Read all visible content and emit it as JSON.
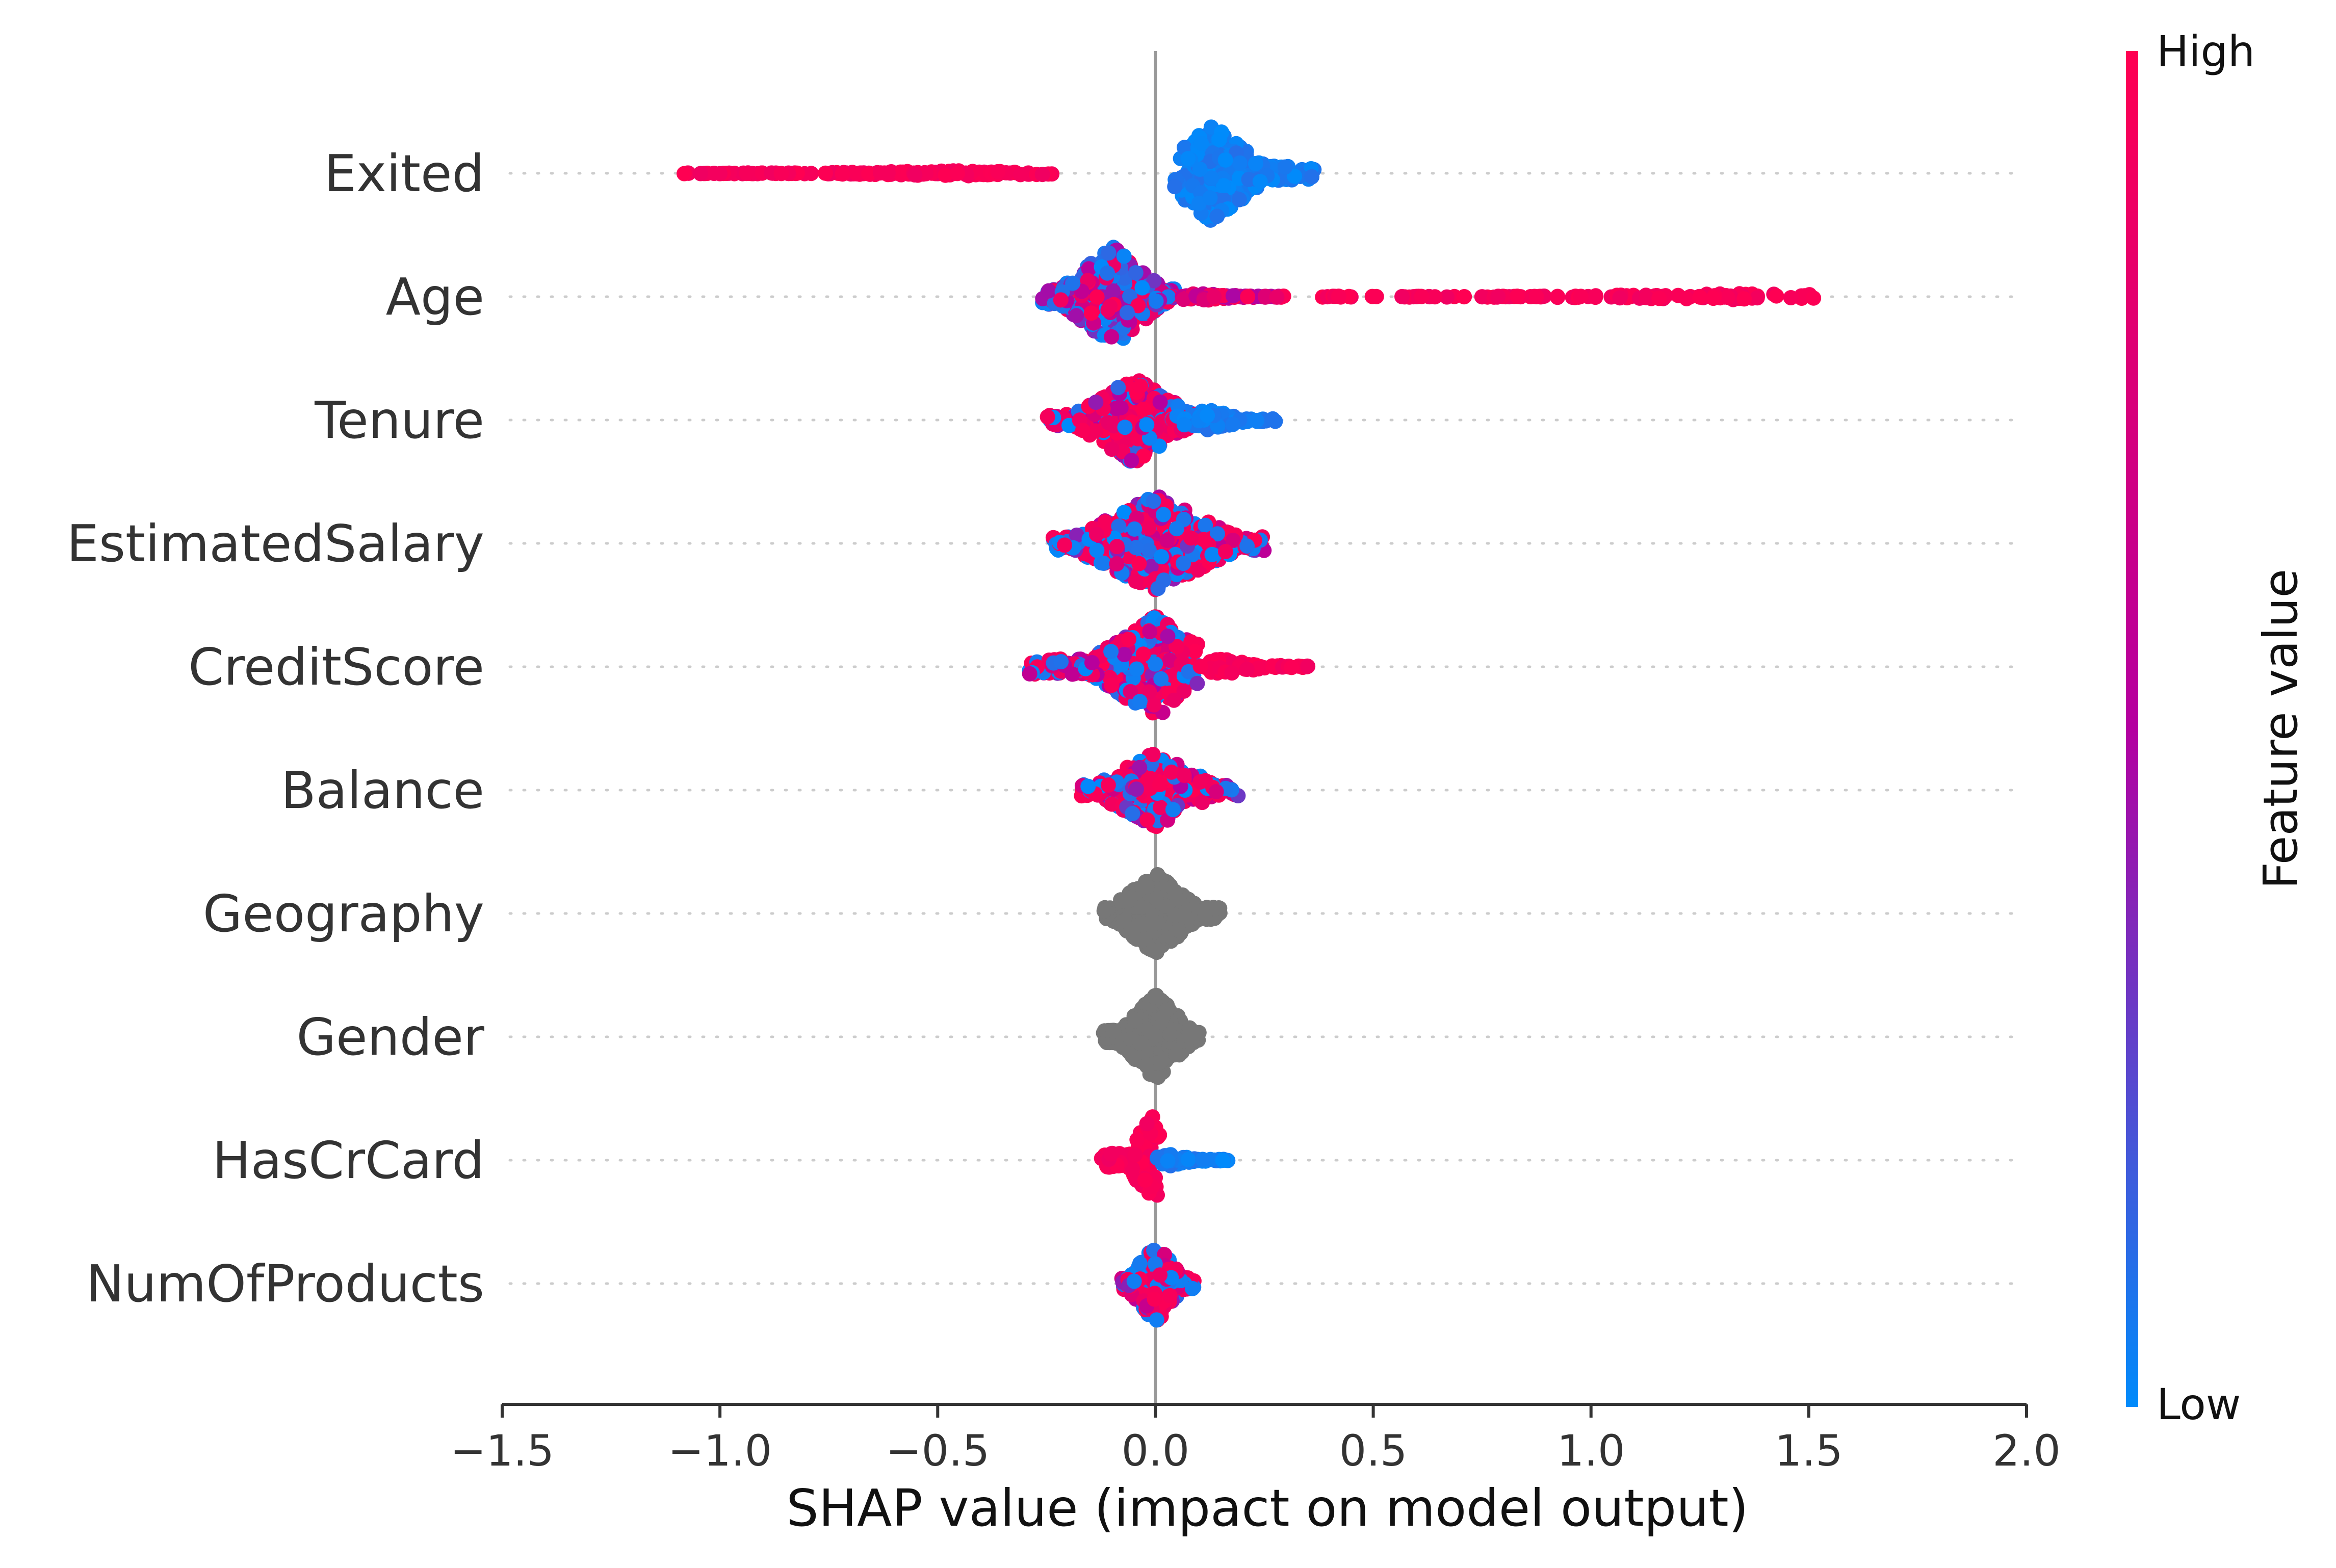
{
  "chart_data": {
    "type": "scatter",
    "subtype": "shap-beeswarm",
    "title": "",
    "xlabel": "SHAP value (impact on model output)",
    "xlim": [
      -1.5,
      2.0
    ],
    "xticks": [
      -1.5,
      -1.0,
      -0.5,
      0.0,
      0.5,
      1.0,
      1.5,
      2.0
    ],
    "xtick_labels": [
      "−1.5",
      "−1.0",
      "−0.5",
      "0.0",
      "0.5",
      "1.0",
      "1.5",
      "2.0"
    ],
    "grid": "dotted horizontal per feature",
    "colorbar": {
      "title": "Feature value",
      "high_label": "High",
      "low_label": "Low",
      "high_color": "#ff0052",
      "mid_color": "#b400a0",
      "low_color": "#008bfb"
    },
    "no_value_color": "#777777",
    "features": [
      {
        "name": "Exited",
        "groups": [
          {
            "color": "high",
            "min": -1.1,
            "max": -0.23,
            "count": 170,
            "spread": 0.05,
            "peak": -0.45
          },
          {
            "color": "low",
            "min": 0.04,
            "max": 0.37,
            "count": 240,
            "spread": 0.95,
            "peak": 0.13
          }
        ]
      },
      {
        "name": "Age",
        "groups": [
          {
            "color": "mixed-low",
            "min": -0.26,
            "max": 0.05,
            "count": 320,
            "spread": 1.0,
            "peak": -0.1
          },
          {
            "color": "mid-high",
            "min": 0.05,
            "max": 0.3,
            "count": 70,
            "spread": 0.08,
            "peak": 0.1
          },
          {
            "color": "high",
            "min": 0.35,
            "max": 1.57,
            "count": 120,
            "spread": 0.06,
            "peak": 1.35
          }
        ]
      },
      {
        "name": "Tenure",
        "groups": [
          {
            "color": "mixed-high",
            "min": -0.25,
            "max": 0.1,
            "count": 330,
            "spread": 0.85,
            "peak": -0.05
          },
          {
            "color": "low",
            "min": 0.05,
            "max": 0.29,
            "count": 60,
            "spread": 0.2,
            "peak": 0.12
          }
        ]
      },
      {
        "name": "EstimatedSalary",
        "groups": [
          {
            "color": "mixed",
            "min": -0.24,
            "max": 0.25,
            "count": 380,
            "spread": 0.95,
            "peak": 0.0
          }
        ]
      },
      {
        "name": "CreditScore",
        "groups": [
          {
            "color": "mixed",
            "min": -0.29,
            "max": 0.1,
            "count": 360,
            "spread": 1.0,
            "peak": 0.0
          },
          {
            "color": "high",
            "min": 0.08,
            "max": 0.39,
            "count": 60,
            "spread": 0.15,
            "peak": 0.15
          }
        ]
      },
      {
        "name": "Balance",
        "groups": [
          {
            "color": "mixed",
            "min": -0.17,
            "max": 0.19,
            "count": 260,
            "spread": 0.75,
            "peak": 0.0
          }
        ]
      },
      {
        "name": "Geography",
        "groups": [
          {
            "color": "none",
            "min": -0.12,
            "max": 0.15,
            "count": 320,
            "spread": 0.8,
            "peak": 0.0
          }
        ]
      },
      {
        "name": "Gender",
        "groups": [
          {
            "color": "none",
            "min": -0.12,
            "max": 0.1,
            "count": 320,
            "spread": 0.85,
            "peak": 0.0
          }
        ]
      },
      {
        "name": "HasCrCard",
        "groups": [
          {
            "color": "high",
            "min": -0.13,
            "max": 0.01,
            "count": 110,
            "spread": 0.9,
            "peak": -0.01
          },
          {
            "color": "low",
            "min": 0.0,
            "max": 0.17,
            "count": 50,
            "spread": 0.12,
            "peak": 0.03
          }
        ]
      },
      {
        "name": "NumOfProducts",
        "groups": [
          {
            "color": "mixed",
            "min": -0.08,
            "max": 0.09,
            "count": 200,
            "spread": 0.8,
            "peak": 0.0
          }
        ]
      }
    ]
  }
}
